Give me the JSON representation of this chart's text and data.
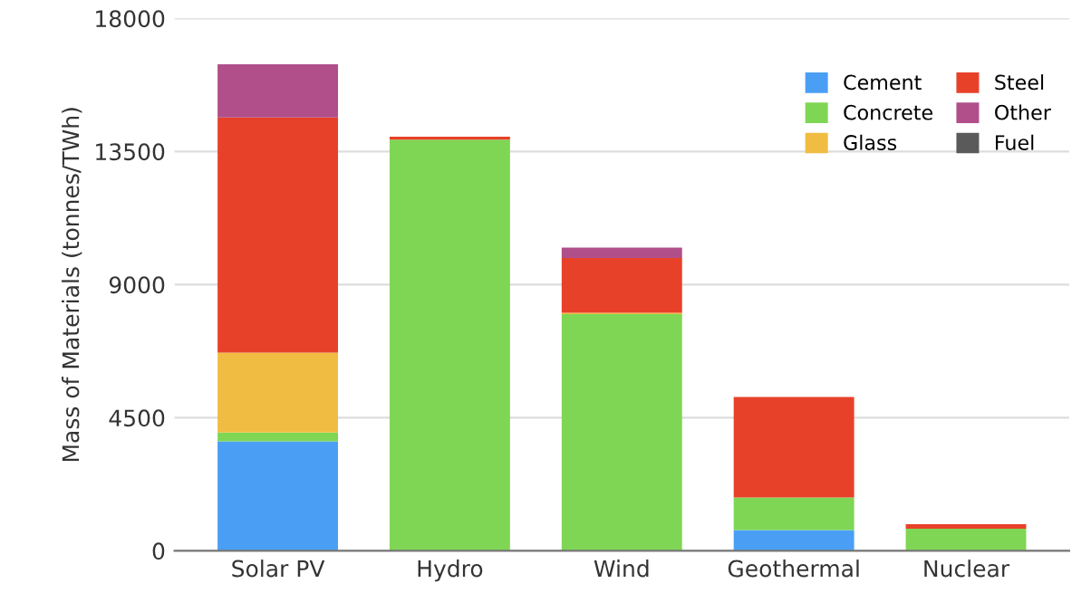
{
  "chart_data": {
    "type": "bar",
    "stacked": true,
    "ylabel": "Mass of Materials (tonnes/TWh)",
    "categories": [
      "Solar PV",
      "Hydro",
      "Wind",
      "Geothermal",
      "Nuclear"
    ],
    "series": [
      {
        "name": "Cement",
        "color": "#4a9ff5",
        "values": [
          3700,
          0,
          0,
          700,
          0
        ]
      },
      {
        "name": "Concrete",
        "color": "#7fd655",
        "values": [
          300,
          13900,
          8000,
          1100,
          750
        ]
      },
      {
        "name": "Glass",
        "color": "#f0bd42",
        "values": [
          2700,
          0,
          50,
          0,
          0
        ]
      },
      {
        "name": "Steel",
        "color": "#e8412a",
        "values": [
          7950,
          100,
          1850,
          3400,
          150
        ]
      },
      {
        "name": "Other",
        "color": "#b04f8a",
        "values": [
          1800,
          0,
          350,
          0,
          0
        ]
      },
      {
        "name": "Fuel",
        "color": "#5a5a5a",
        "values": [
          0,
          0,
          0,
          0,
          0
        ]
      }
    ],
    "ylim": [
      0,
      18000
    ],
    "yticks": [
      0,
      4500,
      9000,
      13500,
      18000
    ],
    "grid": "y",
    "legend": "top right"
  }
}
